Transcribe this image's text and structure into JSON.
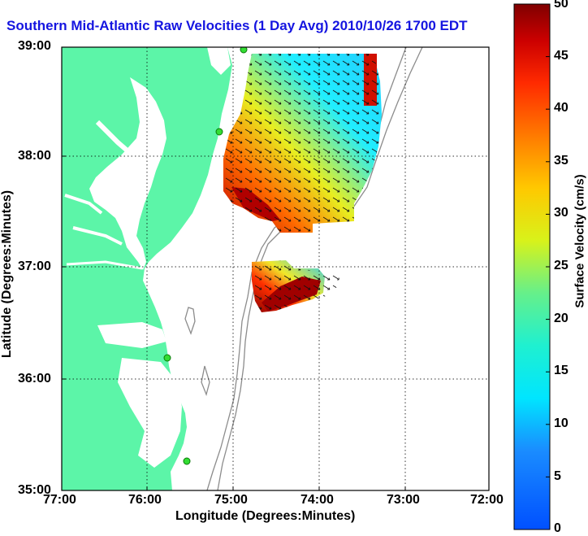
{
  "title": "Southern Mid-Atlantic Raw Velocities (1 Day Avg) 2010/10/26 1700 EDT",
  "xlabel": "Longitude (Degrees:Minutes)",
  "ylabel": "Latitude (Degrees:Minutes)",
  "x_ticks": [
    "77:00",
    "76:00",
    "75:00",
    "74:00",
    "73:00",
    "72:00"
  ],
  "y_ticks": [
    "39:00",
    "38:00",
    "37:00",
    "36:00",
    "35:00"
  ],
  "colorbar": {
    "label": "Surface Velocity (cm/s)",
    "ticks": [
      "0",
      "5",
      "10",
      "15",
      "20",
      "25",
      "30",
      "35",
      "40",
      "45",
      "50"
    ],
    "range": [
      0,
      50
    ],
    "colormap": "jet"
  },
  "colors": {
    "title": "#1515e0",
    "land": "#5cf5a8",
    "bathymetry": "#8c8c8c",
    "station": "#33dd33"
  },
  "map": {
    "lon_range": [
      -77,
      -72
    ],
    "lat_range": [
      35,
      39
    ],
    "grid": "dotted"
  }
}
